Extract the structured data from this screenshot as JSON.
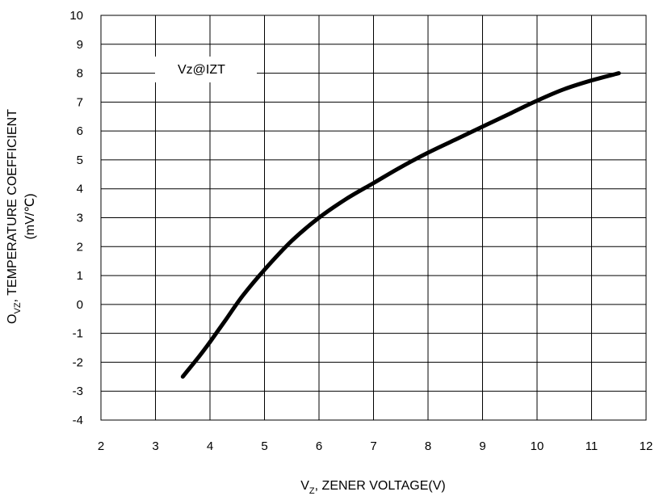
{
  "chart_data": {
    "type": "line",
    "title": "",
    "xlabel": "V",
    "xlabel_sub": "Z",
    "xlabel_rest": ", ZENER VOLTAGE(V)",
    "ylabel_line1_prefix": "O",
    "ylabel_line1_sub": "VZ",
    "ylabel_line1_rest": ", TEMPERATURE COEFFICIENT",
    "ylabel_line2": "(mV/℃)",
    "xlim": [
      2,
      12
    ],
    "ylim": [
      -4,
      10
    ],
    "x_ticks": [
      2,
      3,
      4,
      5,
      6,
      7,
      8,
      9,
      10,
      11,
      12
    ],
    "y_ticks": [
      -4,
      -3,
      -2,
      -1,
      0,
      1,
      2,
      3,
      4,
      5,
      6,
      7,
      8,
      9,
      10
    ],
    "grid": true,
    "legend_label": "Vz@IZT",
    "legend_position": "top-left",
    "series": [
      {
        "x": [
          3.5,
          3.8,
          4.0,
          4.3,
          4.6,
          5.0,
          5.5,
          6.0,
          6.5,
          7.0,
          7.5,
          8.0,
          8.5,
          9.0,
          9.5,
          10.0,
          10.5,
          11.0,
          11.5
        ],
        "y": [
          -2.5,
          -1.8,
          -1.3,
          -0.5,
          0.3,
          1.2,
          2.2,
          3.0,
          3.65,
          4.2,
          4.75,
          5.25,
          5.7,
          6.15,
          6.6,
          7.05,
          7.45,
          7.75,
          8.0
        ]
      }
    ]
  }
}
